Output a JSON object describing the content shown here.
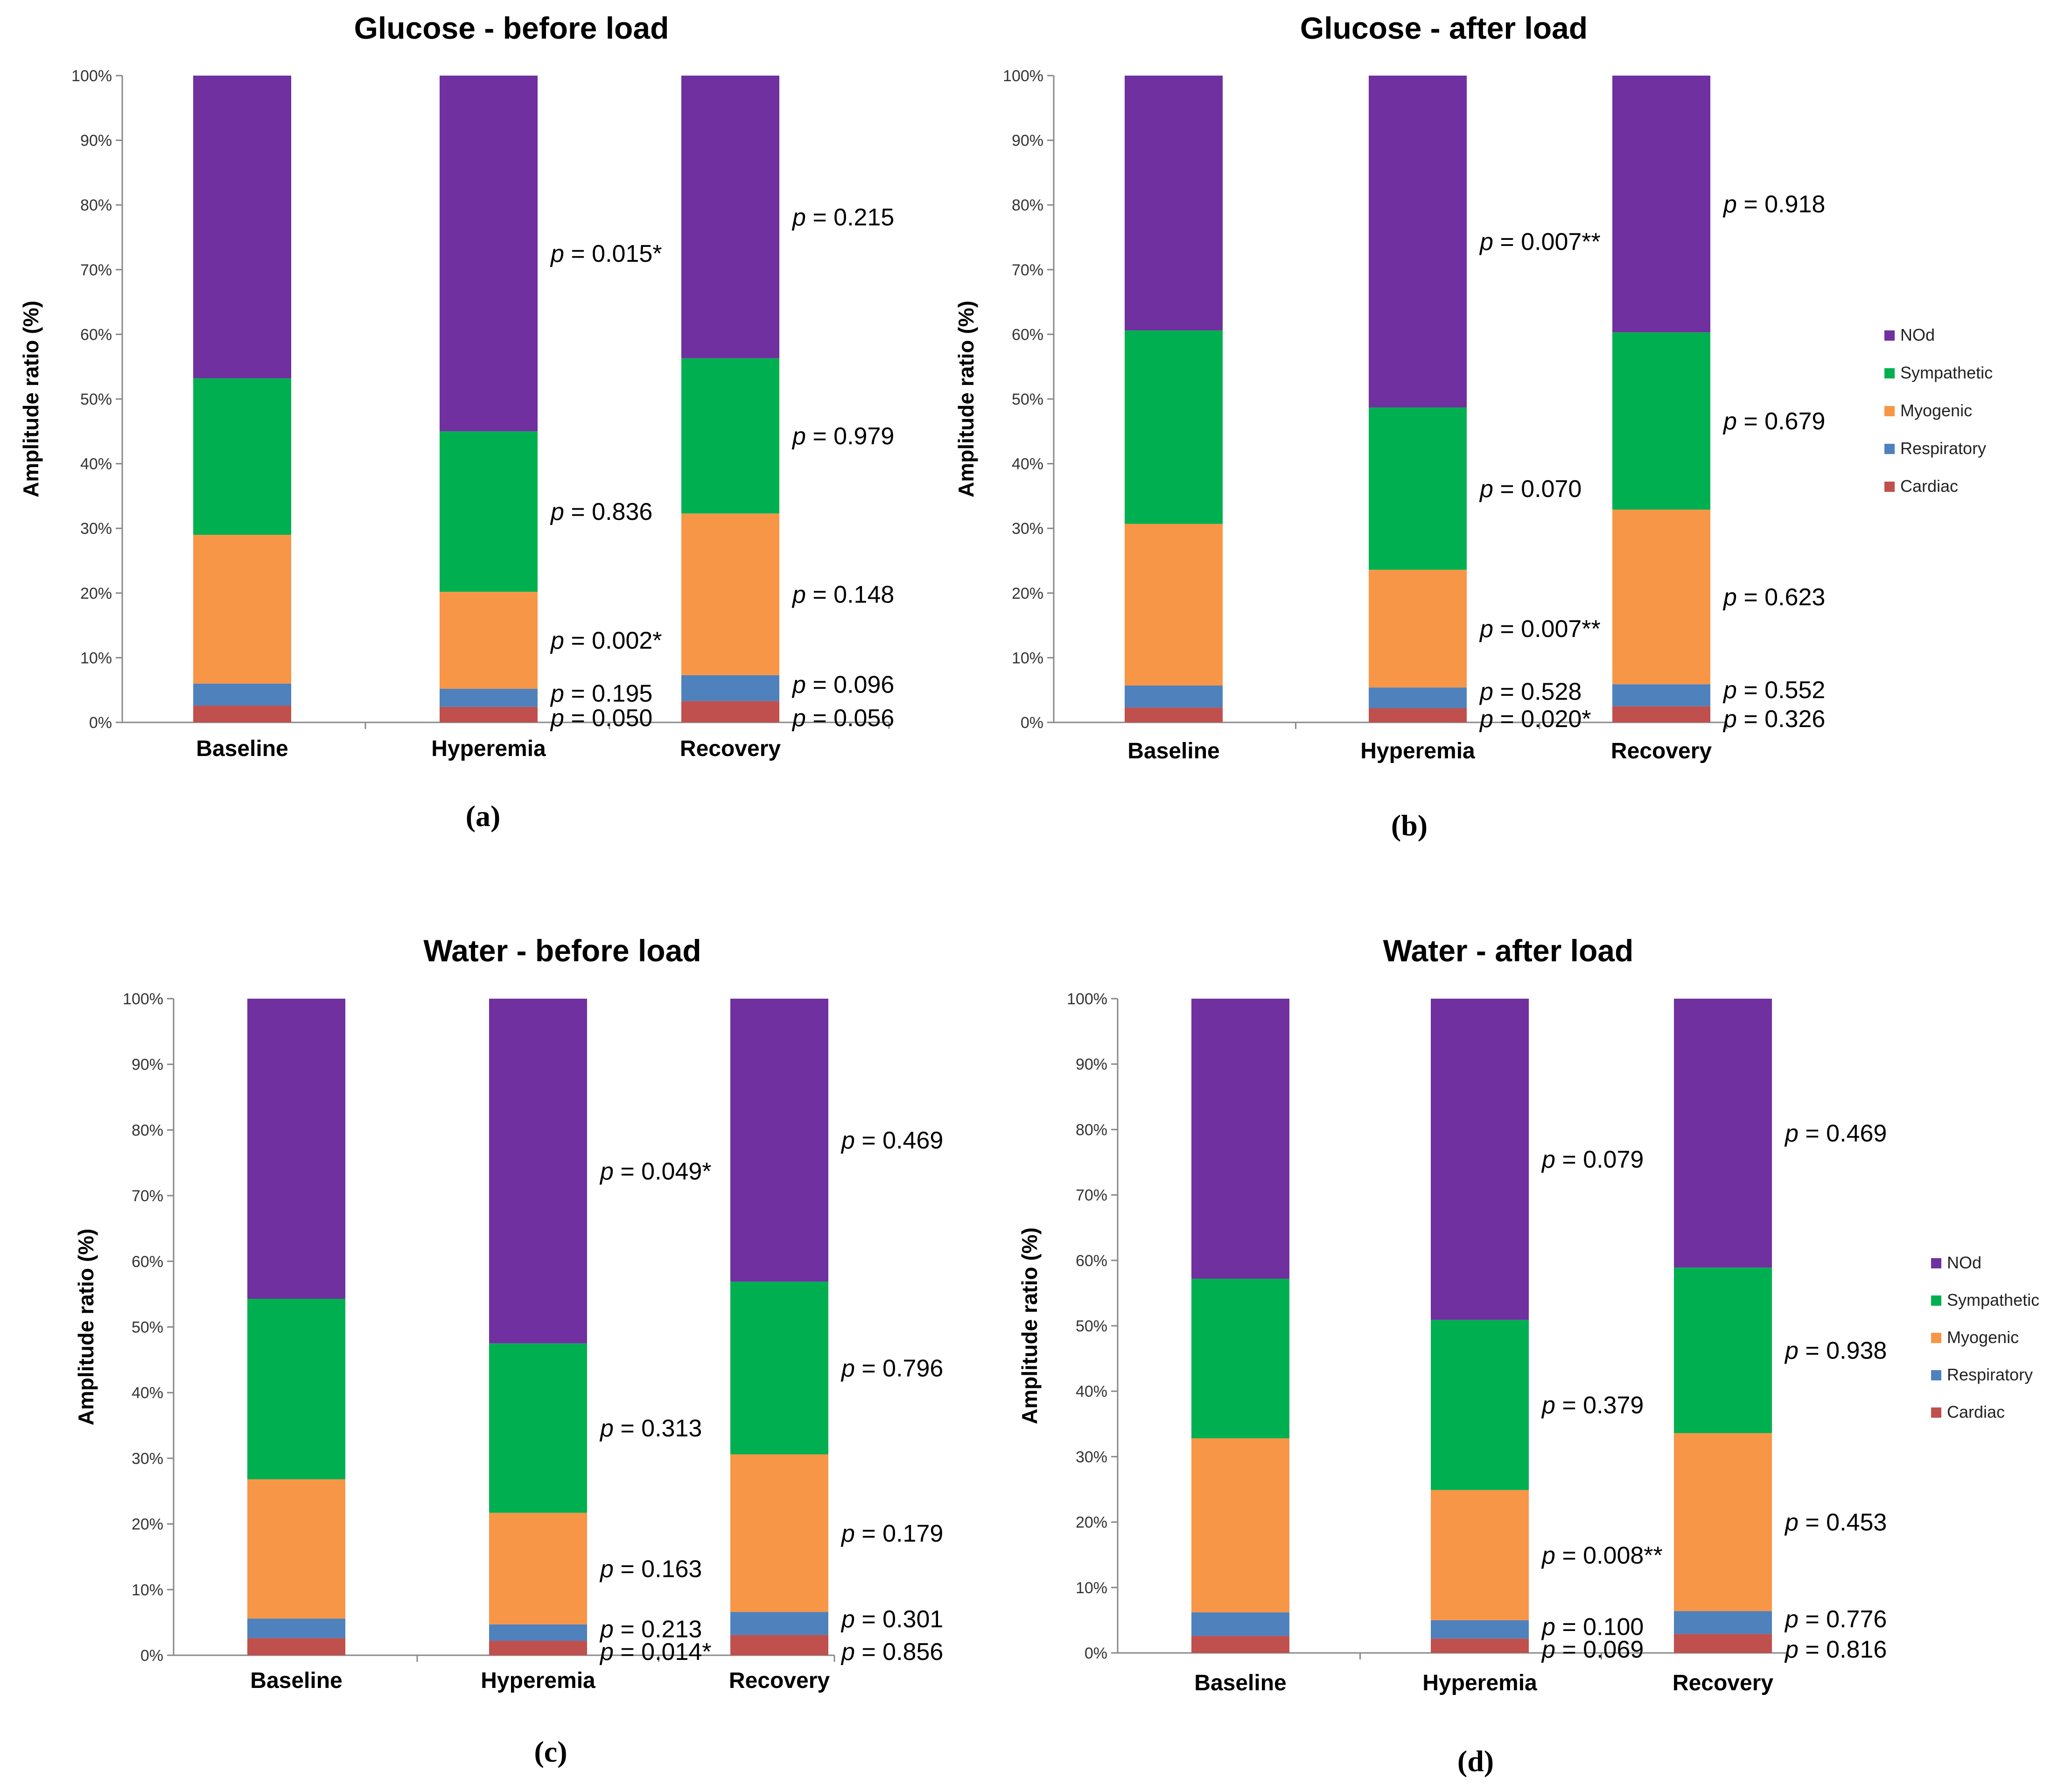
{
  "chart_data": [
    {
      "type": "bar",
      "stacked": true,
      "panel": "(a)",
      "title": "Glucose - before load",
      "ylabel": "Amplitude ratio (%)",
      "ylim": [
        0,
        100
      ],
      "yticks": [
        "0%",
        "10%",
        "20%",
        "30%",
        "40%",
        "50%",
        "60%",
        "70%",
        "80%",
        "90%",
        "100%"
      ],
      "categories": [
        "Baseline",
        "Hyperemia",
        "Recovery"
      ],
      "series": [
        {
          "name": "Cardiac",
          "color": "#C0504D",
          "values": [
            2.6,
            2.4,
            3.3
          ]
        },
        {
          "name": "Respiratory",
          "color": "#4F81BD",
          "values": [
            3.4,
            2.8,
            4.0
          ]
        },
        {
          "name": "Myogenic",
          "color": "#F79646",
          "values": [
            23.0,
            15.0,
            25.0
          ]
        },
        {
          "name": "Sympathetic",
          "color": "#00B050",
          "values": [
            24.2,
            24.8,
            24.0
          ]
        },
        {
          "name": "NOd",
          "color": "#7030A0",
          "values": [
            46.8,
            55.0,
            43.7
          ]
        }
      ],
      "pvalues": {
        "Hyperemia": [
          "= 0.050",
          "= 0.195",
          "= 0.002*",
          "= 0.836",
          "= 0.015*"
        ],
        "Recovery": [
          "= 0.056",
          "= 0.096",
          "= 0.148",
          "= 0.979",
          "= 0.215"
        ]
      },
      "legend": false
    },
    {
      "type": "bar",
      "stacked": true,
      "panel": "(b)",
      "title": "Glucose - after load",
      "ylabel": "Amplitude ratio (%)",
      "ylim": [
        0,
        100
      ],
      "yticks": [
        "0%",
        "10%",
        "20%",
        "30%",
        "40%",
        "50%",
        "60%",
        "70%",
        "80%",
        "90%",
        "100%"
      ],
      "categories": [
        "Baseline",
        "Hyperemia",
        "Recovery"
      ],
      "series": [
        {
          "name": "Cardiac",
          "color": "#C0504D",
          "values": [
            2.3,
            2.2,
            2.5
          ]
        },
        {
          "name": "Respiratory",
          "color": "#4F81BD",
          "values": [
            3.4,
            3.2,
            3.4
          ]
        },
        {
          "name": "Myogenic",
          "color": "#F79646",
          "values": [
            25.0,
            18.2,
            27.0
          ]
        },
        {
          "name": "Sympathetic",
          "color": "#00B050",
          "values": [
            29.9,
            25.1,
            27.4
          ]
        },
        {
          "name": "NOd",
          "color": "#7030A0",
          "values": [
            39.4,
            51.3,
            39.7
          ]
        }
      ],
      "pvalues": {
        "Hyperemia": [
          "= 0.020*",
          "= 0.528",
          "= 0.007**",
          "= 0.070",
          "= 0.007**"
        ],
        "Recovery": [
          "= 0.326",
          "= 0.552",
          "= 0.623",
          "= 0.679",
          "= 0.918"
        ]
      },
      "legend": true
    },
    {
      "type": "bar",
      "stacked": true,
      "panel": "(c)",
      "title": "Water - before load",
      "ylabel": "Amplitude ratio (%)",
      "ylim": [
        0,
        100
      ],
      "yticks": [
        "0%",
        "10%",
        "20%",
        "30%",
        "40%",
        "50%",
        "60%",
        "70%",
        "80%",
        "90%",
        "100%"
      ],
      "categories": [
        "Baseline",
        "Hyperemia",
        "Recovery"
      ],
      "series": [
        {
          "name": "Cardiac",
          "color": "#C0504D",
          "values": [
            2.6,
            2.2,
            3.1
          ]
        },
        {
          "name": "Respiratory",
          "color": "#4F81BD",
          "values": [
            3.0,
            2.5,
            3.5
          ]
        },
        {
          "name": "Myogenic",
          "color": "#F79646",
          "values": [
            21.2,
            17.0,
            24.0
          ]
        },
        {
          "name": "Sympathetic",
          "color": "#00B050",
          "values": [
            27.5,
            25.8,
            26.3
          ]
        },
        {
          "name": "NOd",
          "color": "#7030A0",
          "values": [
            45.7,
            52.5,
            43.1
          ]
        }
      ],
      "pvalues": {
        "Hyperemia": [
          "= 0.014*",
          "= 0.213",
          "= 0.163",
          "= 0.313",
          "= 0.049*"
        ],
        "Recovery": [
          "= 0.856",
          "= 0.301",
          "= 0.179",
          "= 0.796",
          "= 0.469"
        ]
      },
      "legend": false
    },
    {
      "type": "bar",
      "stacked": true,
      "panel": "(d)",
      "title": "Water - after load",
      "ylabel": "Amplitude ratio (%)",
      "ylim": [
        0,
        100
      ],
      "yticks": [
        "0%",
        "10%",
        "20%",
        "30%",
        "40%",
        "50%",
        "60%",
        "70%",
        "80%",
        "90%",
        "100%"
      ],
      "categories": [
        "Baseline",
        "Hyperemia",
        "Recovery"
      ],
      "series": [
        {
          "name": "Cardiac",
          "color": "#C0504D",
          "values": [
            2.6,
            2.2,
            2.9
          ]
        },
        {
          "name": "Respiratory",
          "color": "#4F81BD",
          "values": [
            3.6,
            2.8,
            3.5
          ]
        },
        {
          "name": "Myogenic",
          "color": "#F79646",
          "values": [
            26.6,
            19.9,
            27.2
          ]
        },
        {
          "name": "Sympathetic",
          "color": "#00B050",
          "values": [
            24.4,
            26.0,
            25.3
          ]
        },
        {
          "name": "NOd",
          "color": "#7030A0",
          "values": [
            42.8,
            49.1,
            41.1
          ]
        }
      ],
      "pvalues": {
        "Hyperemia": [
          "= 0.069",
          "= 0.100",
          "= 0.008**",
          "= 0.379",
          "= 0.079"
        ],
        "Recovery": [
          "= 0.816",
          "= 0.776",
          "= 0.453",
          "= 0.938",
          "= 0.469"
        ]
      },
      "legend": true
    }
  ],
  "pvalue_prefix": "p"
}
